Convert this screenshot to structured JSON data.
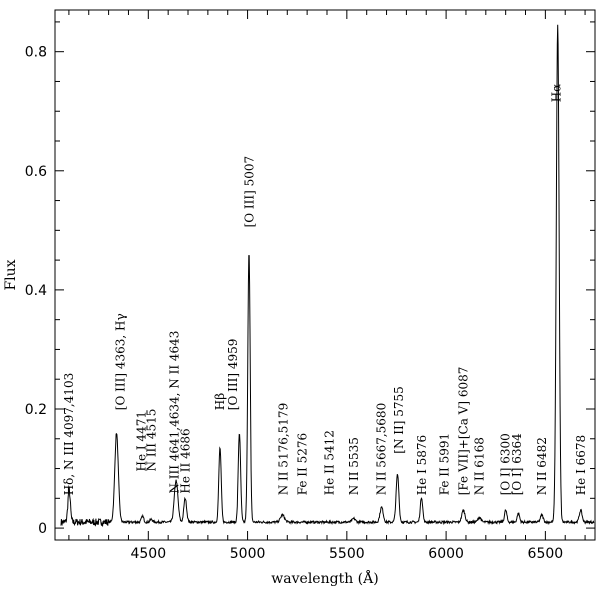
{
  "chart_data": {
    "type": "line",
    "xlabel": "wavelength (Å)",
    "ylabel": "Flux",
    "xlim": [
      4030,
      6750
    ],
    "ylim": [
      -0.02,
      0.87
    ],
    "xticks": [
      4500,
      5000,
      5500,
      6000,
      6500
    ],
    "xtick_labels": [
      "4500",
      "5000",
      "5500",
      "6000",
      "6500"
    ],
    "yticks": [
      0,
      0.2,
      0.4,
      0.6,
      0.8
    ],
    "ytick_labels": [
      "0",
      "0.2",
      "0.4",
      "0.6",
      "0.8"
    ],
    "continuum": 0.01,
    "spectrum_range": [
      4060,
      6745
    ],
    "lines": [
      {
        "wave": 4101,
        "peak": 0.055,
        "sigma": 6
      },
      {
        "wave": 4340,
        "peak": 0.15,
        "sigma": 9
      },
      {
        "wave": 4471,
        "peak": 0.01,
        "sigma": 6
      },
      {
        "wave": 4515,
        "peak": 0.005,
        "sigma": 6
      },
      {
        "wave": 4640,
        "peak": 0.07,
        "sigma": 9
      },
      {
        "wave": 4686,
        "peak": 0.04,
        "sigma": 7
      },
      {
        "wave": 4861,
        "peak": 0.125,
        "sigma": 6
      },
      {
        "wave": 4959,
        "peak": 0.15,
        "sigma": 6
      },
      {
        "wave": 5007,
        "peak": 0.455,
        "sigma": 6
      },
      {
        "wave": 5176,
        "peak": 0.012,
        "sigma": 10
      },
      {
        "wave": 5535,
        "peak": 0.006,
        "sigma": 8
      },
      {
        "wave": 5675,
        "peak": 0.025,
        "sigma": 8
      },
      {
        "wave": 5755,
        "peak": 0.08,
        "sigma": 7
      },
      {
        "wave": 5876,
        "peak": 0.042,
        "sigma": 6
      },
      {
        "wave": 6087,
        "peak": 0.02,
        "sigma": 8
      },
      {
        "wave": 6168,
        "peak": 0.008,
        "sigma": 8
      },
      {
        "wave": 6300,
        "peak": 0.02,
        "sigma": 6
      },
      {
        "wave": 6364,
        "peak": 0.015,
        "sigma": 6
      },
      {
        "wave": 6482,
        "peak": 0.012,
        "sigma": 7
      },
      {
        "wave": 6562,
        "peak": 0.835,
        "sigma": 7
      },
      {
        "wave": 6678,
        "peak": 0.02,
        "sigma": 7
      }
    ],
    "annotations": [
      {
        "text": "Hδ, N III 4097,4103",
        "wave": 4100,
        "y": 0.055
      },
      {
        "text": "[O III] 4363, Hγ",
        "wave": 4360,
        "y": 0.198
      },
      {
        "text": "He I 4471",
        "wave": 4465,
        "y": 0.095
      },
      {
        "text": "N III 4515",
        "wave": 4515,
        "y": 0.095
      },
      {
        "text": "N III 4641,4634, N II 4643",
        "wave": 4632,
        "y": 0.058
      },
      {
        "text": "He II 4686",
        "wave": 4687,
        "y": 0.058
      },
      {
        "text": "Hβ",
        "wave": 4862,
        "y": 0.198
      },
      {
        "text": "[O III] 4959",
        "wave": 4927,
        "y": 0.198
      },
      {
        "text": "[O III] 5007",
        "wave": 5010,
        "y": 0.505
      },
      {
        "text": "N II 5176,5179",
        "wave": 5180,
        "y": 0.055
      },
      {
        "text": "Fe II 5276",
        "wave": 5277,
        "y": 0.055
      },
      {
        "text": "He II 5412",
        "wave": 5413,
        "y": 0.055
      },
      {
        "text": "N II 5535",
        "wave": 5535,
        "y": 0.055
      },
      {
        "text": "N II 5667,5680",
        "wave": 5675,
        "y": 0.055
      },
      {
        "text": "[N II] 5755",
        "wave": 5762,
        "y": 0.125
      },
      {
        "text": "He I 5876",
        "wave": 5878,
        "y": 0.055
      },
      {
        "text": "Fe II 5991",
        "wave": 5992,
        "y": 0.055
      },
      {
        "text": "[Fe VII]+[Ca V] 6087",
        "wave": 6087,
        "y": 0.055
      },
      {
        "text": "N II 6168",
        "wave": 6169,
        "y": 0.055
      },
      {
        "text": "[O I] 6300",
        "wave": 6300,
        "y": 0.055
      },
      {
        "text": "[O I] 6364",
        "wave": 6358,
        "y": 0.055
      },
      {
        "text": "N II 6482",
        "wave": 6483,
        "y": 0.055
      },
      {
        "text": "Hα",
        "wave": 6557,
        "y": 0.715
      },
      {
        "text": "He I 6678",
        "wave": 6680,
        "y": 0.055
      }
    ]
  }
}
